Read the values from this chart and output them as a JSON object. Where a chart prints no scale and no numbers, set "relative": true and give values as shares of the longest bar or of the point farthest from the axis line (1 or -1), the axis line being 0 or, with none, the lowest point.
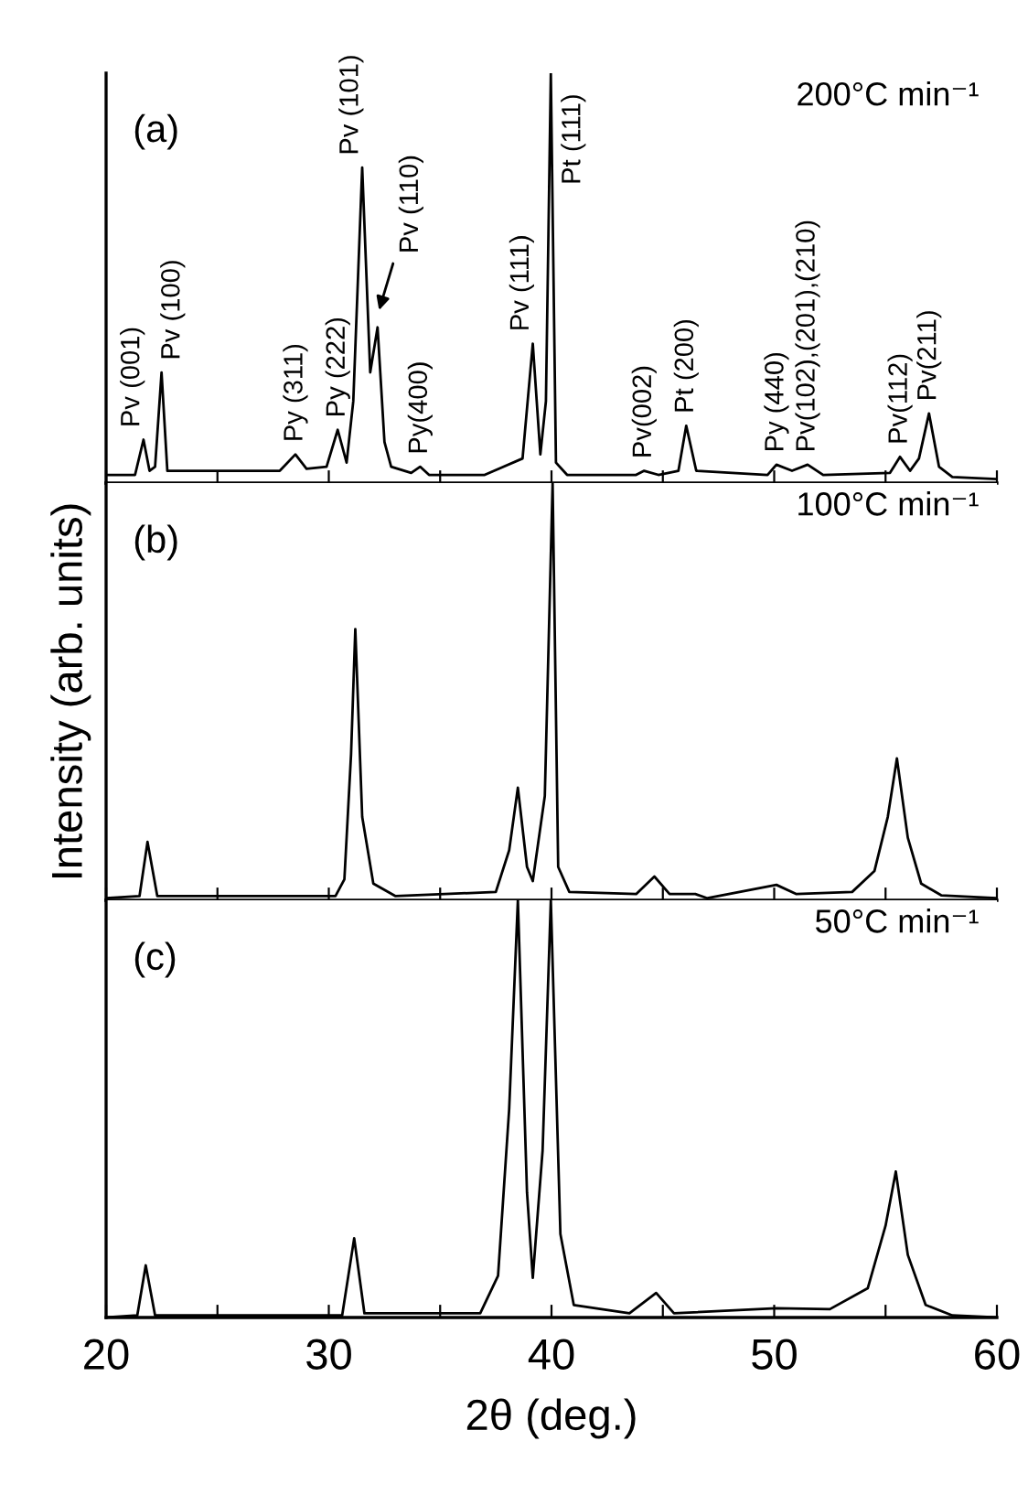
{
  "chart_data": [
    {
      "type": "line",
      "relative": true,
      "xlim": [
        20,
        60
      ],
      "xticks": [
        20,
        {
          "value": 25,
          "label": null
        },
        30,
        {
          "value": 35,
          "label": null
        },
        40,
        {
          "value": 45,
          "label": null
        },
        50,
        {
          "value": 55,
          "label": null
        },
        60
      ],
      "tick_labels": false,
      "grid": false,
      "series": [
        {
          "color": "#000000",
          "x": [
            20.0,
            21.3,
            21.68,
            21.95,
            22.2,
            22.49,
            22.75,
            25.0,
            27.8,
            28.5,
            29.0,
            29.9,
            30.4,
            30.8,
            31.1,
            31.5,
            31.86,
            32.19,
            32.5,
            32.8,
            33.7,
            34.1,
            34.5,
            37.0,
            38.7,
            39.16,
            39.5,
            39.75,
            39.97,
            40.2,
            40.7,
            43.8,
            44.16,
            44.8,
            45.7,
            46.05,
            46.5,
            49.7,
            50.1,
            50.8,
            51.5,
            52.2,
            55.2,
            55.65,
            56.1,
            56.5,
            56.95,
            57.4,
            58.0,
            60.0
          ],
          "values": [
            0.02,
            0.02,
            0.106,
            0.03,
            0.04,
            0.27,
            0.03,
            0.03,
            0.03,
            0.07,
            0.035,
            0.04,
            0.13,
            0.05,
            0.2,
            0.77,
            0.27,
            0.38,
            0.1,
            0.04,
            0.025,
            0.04,
            0.02,
            0.02,
            0.06,
            0.34,
            0.07,
            0.2,
            1.0,
            0.05,
            0.02,
            0.02,
            0.03,
            0.02,
            0.03,
            0.14,
            0.03,
            0.02,
            0.045,
            0.03,
            0.045,
            0.02,
            0.025,
            0.064,
            0.03,
            0.06,
            0.17,
            0.04,
            0.015,
            0.01
          ]
        }
      ],
      "annotations": [
        "(a)",
        "200°C min⁻¹",
        {
          "text": "Pv (001)",
          "x": 21.68,
          "y": 0.106
        },
        {
          "text": "Pv (100)",
          "x": 22.49,
          "y": 0.27
        },
        {
          "text": "Py (311)",
          "x": 28.5,
          "y": 0.07
        },
        {
          "text": "Py (222)",
          "x": 30.4,
          "y": 0.13
        },
        {
          "text": "Pv (101)",
          "x": 31.5,
          "y": 0.77
        },
        {
          "text": "Pv (110)",
          "x": 32.19,
          "y": 0.38
        },
        {
          "text": "Py(400)",
          "x": 34.1,
          "y": 0.04
        },
        {
          "text": "Pv (111)",
          "x": 39.16,
          "y": 0.34
        },
        {
          "text": "Pt (111)",
          "x": 39.97,
          "y": 1.0
        },
        {
          "text": "Pv(002)",
          "x": 44.16,
          "y": 0.03
        },
        {
          "text": "Pt (200)",
          "x": 46.05,
          "y": 0.14
        },
        {
          "text": "Py (440)",
          "x": 50.1,
          "y": 0.045
        },
        {
          "text": "Pv(102),(201),(210)",
          "x": 51.5,
          "y": 0.045
        },
        {
          "text": "Pv(112)",
          "x": 55.65,
          "y": 0.064
        },
        {
          "text": "Pv(211)",
          "x": 56.95,
          "y": 0.17
        }
      ]
    },
    {
      "type": "line",
      "relative": true,
      "xlim": [
        20,
        60
      ],
      "xticks": [
        20,
        {
          "value": 25,
          "label": null
        },
        30,
        {
          "value": 35,
          "label": null
        },
        40,
        {
          "value": 45,
          "label": null
        },
        50,
        {
          "value": 55,
          "label": null
        },
        60
      ],
      "tick_labels": false,
      "grid": false,
      "ylabel": "Intensity (arb. units)",
      "series": [
        {
          "color": "#000000",
          "x": [
            20.0,
            21.5,
            21.86,
            22.3,
            30.3,
            30.7,
            31.0,
            31.19,
            31.5,
            32.0,
            33.0,
            37.5,
            38.1,
            38.49,
            38.9,
            39.16,
            39.7,
            40.05,
            40.3,
            40.8,
            43.8,
            44.62,
            45.3,
            46.46,
            47.0,
            50.1,
            51.0,
            53.5,
            54.5,
            55.1,
            55.51,
            56.0,
            56.6,
            57.5,
            60.0
          ],
          "values": [
            0.005,
            0.01,
            0.14,
            0.01,
            0.01,
            0.05,
            0.35,
            0.65,
            0.2,
            0.04,
            0.01,
            0.02,
            0.12,
            0.27,
            0.08,
            0.046,
            0.25,
            1.0,
            0.08,
            0.02,
            0.015,
            0.057,
            0.015,
            0.015,
            0.005,
            0.037,
            0.015,
            0.02,
            0.07,
            0.2,
            0.34,
            0.15,
            0.04,
            0.012,
            0.005
          ]
        }
      ],
      "annotations": [
        "(b)",
        "100°C min⁻¹"
      ]
    },
    {
      "type": "line",
      "relative": true,
      "xlim": [
        20,
        60
      ],
      "xticks": [
        20,
        {
          "value": 25,
          "label": null
        },
        30,
        {
          "value": 35,
          "label": null
        },
        40,
        {
          "value": 45,
          "label": null
        },
        50,
        {
          "value": 55,
          "label": null
        },
        60
      ],
      "tick_labels": "x",
      "grid": false,
      "xlabel": "2θ (deg.)",
      "series": [
        {
          "color": "#000000",
          "x": [
            20.0,
            21.4,
            21.78,
            22.2,
            30.6,
            31.14,
            31.6,
            36.8,
            37.6,
            38.1,
            38.49,
            38.9,
            39.16,
            39.6,
            39.97,
            40.4,
            41.0,
            43.5,
            44.7,
            45.5,
            50.1,
            52.5,
            54.2,
            55.0,
            55.46,
            56.0,
            56.8,
            58.0,
            60.0
          ],
          "values": [
            0.0,
            0.005,
            0.125,
            0.005,
            0.005,
            0.19,
            0.01,
            0.01,
            0.1,
            0.5,
            1.0,
            0.3,
            0.095,
            0.4,
            1.0,
            0.2,
            0.03,
            0.01,
            0.059,
            0.01,
            0.022,
            0.02,
            0.07,
            0.22,
            0.35,
            0.15,
            0.03,
            0.005,
            0.0
          ]
        }
      ],
      "annotations": [
        "(c)",
        "50°C min⁻¹"
      ]
    }
  ]
}
